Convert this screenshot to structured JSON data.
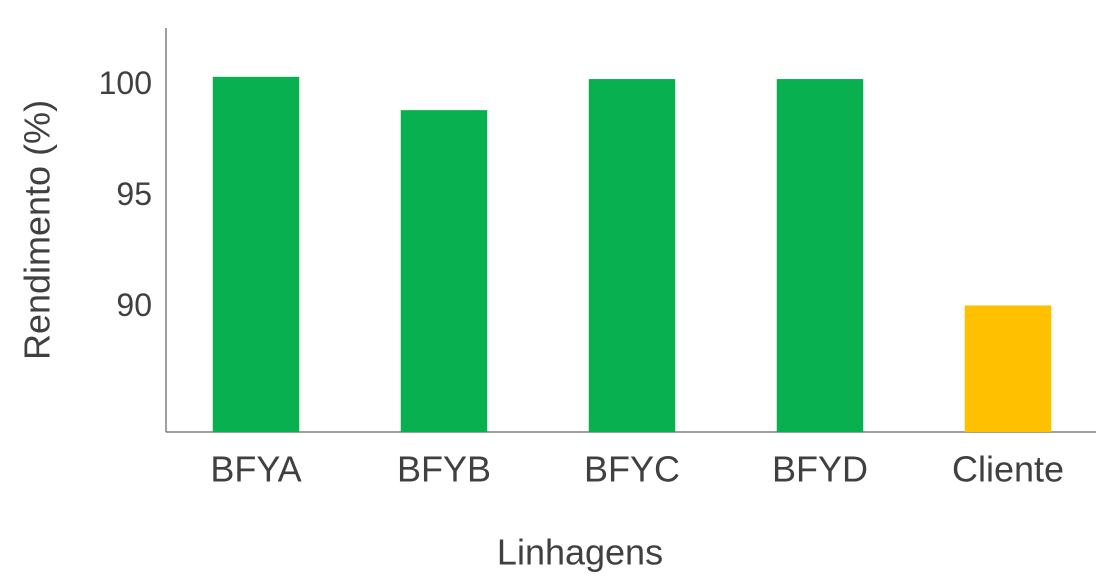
{
  "chart_data": {
    "type": "bar",
    "x_label": "Linhagens",
    "y_label": "Rendimento (%)",
    "categories": [
      "BFYA",
      "BFYB",
      "BFYC",
      "BFYD",
      "Cliente"
    ],
    "values": [
      100.4,
      98.9,
      100.3,
      100.3,
      90.1
    ],
    "colors": [
      "#08b050",
      "#08b050",
      "#08b050",
      "#08b050",
      "#ffc000"
    ],
    "ylim": [
      84.4,
      102.6
    ],
    "yticks": [
      90,
      95,
      100
    ],
    "grid": false
  }
}
